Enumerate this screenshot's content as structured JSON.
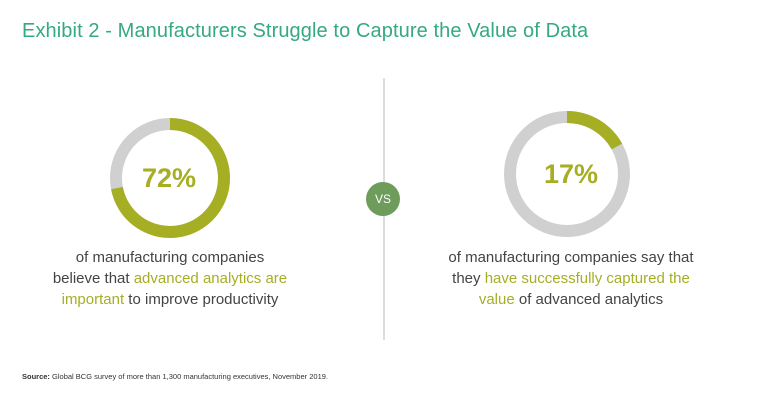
{
  "title": "Exhibit 2 - Manufacturers Struggle to Capture the Value of Data",
  "vs_label": "VS",
  "colors": {
    "accent": "#a6ae24",
    "track": "#d0d0d0",
    "title": "#35a97f",
    "badge": "#6e9c5a"
  },
  "chart_data": [
    {
      "type": "pie",
      "title": "",
      "value": 72,
      "value_label": "72%",
      "caption": {
        "line1": "of manufacturing companies",
        "line2_pre": "believe that ",
        "line2_hl": "advanced analytics are",
        "line3_hl": "important",
        "line3_post": " to improve productivity"
      }
    },
    {
      "type": "pie",
      "title": "",
      "value": 17,
      "value_label": "17%",
      "caption": {
        "line1": "of manufacturing companies say that",
        "line2_pre": "they ",
        "line2_hl": "have successfully captured the",
        "line3_hl": "value",
        "line3_post": " of advanced analytics"
      }
    }
  ],
  "source": {
    "label": "Source:",
    "text": " Global BCG survey of more than 1,300 manufacturing executives, November 2019."
  }
}
